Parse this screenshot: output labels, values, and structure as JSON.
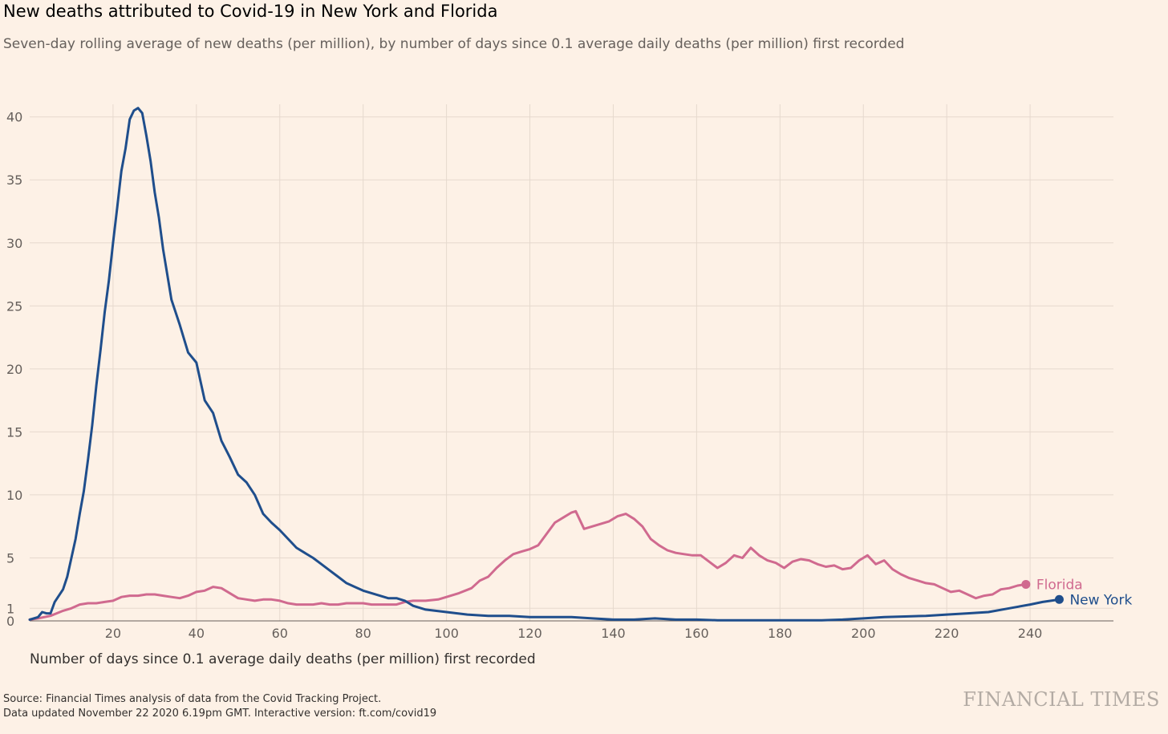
{
  "title": "New deaths attributed to Covid-19 in New York and Florida",
  "subtitle": "Seven-day rolling average of new deaths (per million), by number of days since 0.1 average daily deaths (per million) first recorded",
  "source_line1": "Source: Financial Times analysis of data from the Covid Tracking Project.",
  "source_line2": "Data updated November 22 2020 6.19pm GMT. Interactive version: ft.com/covid19",
  "brand": "FINANCIAL TIMES",
  "colors": {
    "background": "#fdf1e6",
    "grid": "#e6d9ce",
    "new_york": "#1f4e8c",
    "florida": "#d06a8f"
  },
  "chart_data": {
    "type": "line",
    "xlabel": "Number of days since 0.1 average daily deaths (per million) first recorded",
    "ylabel": "",
    "xlim": [
      0,
      260
    ],
    "ylim": [
      0,
      41
    ],
    "x_ticks": [
      20,
      40,
      60,
      80,
      100,
      120,
      140,
      160,
      180,
      200,
      220,
      240
    ],
    "y_ticks": [
      0,
      1,
      5,
      10,
      15,
      20,
      25,
      30,
      35,
      40
    ],
    "grid": true,
    "series": [
      {
        "name": "New York",
        "color": "#1f4e8c",
        "x": [
          0,
          2,
          3,
          4,
          5,
          6,
          8,
          9,
          10,
          11,
          12,
          13,
          14,
          15,
          16,
          17,
          18,
          19,
          20,
          21,
          22,
          23,
          24,
          25,
          26,
          27,
          28,
          29,
          30,
          31,
          32,
          33,
          34,
          35,
          36,
          38,
          40,
          42,
          44,
          46,
          48,
          50,
          52,
          54,
          56,
          58,
          60,
          62,
          64,
          66,
          68,
          70,
          72,
          74,
          76,
          78,
          80,
          82,
          84,
          86,
          88,
          90,
          92,
          95,
          100,
          105,
          110,
          115,
          120,
          125,
          130,
          135,
          140,
          145,
          150,
          155,
          160,
          165,
          170,
          175,
          180,
          185,
          190,
          195,
          200,
          205,
          210,
          215,
          220,
          225,
          230,
          235,
          240,
          243,
          245,
          247
        ],
        "y": [
          0.1,
          0.3,
          0.7,
          0.6,
          0.6,
          1.5,
          2.5,
          3.5,
          5,
          6.5,
          8.5,
          10.3,
          12.8,
          15.5,
          18.7,
          21.5,
          24.5,
          27,
          30,
          32.8,
          35.7,
          37.5,
          39.8,
          40.5,
          40.7,
          40.3,
          38.5,
          36.5,
          34,
          32,
          29.5,
          27.5,
          25.5,
          24.5,
          23.5,
          21.3,
          20.5,
          17.5,
          16.5,
          14.3,
          13,
          11.6,
          11,
          10,
          8.5,
          7.8,
          7.2,
          6.5,
          5.8,
          5.4,
          5,
          4.5,
          4,
          3.5,
          3,
          2.7,
          2.4,
          2.2,
          2,
          1.8,
          1.8,
          1.6,
          1.2,
          0.9,
          0.7,
          0.5,
          0.4,
          0.4,
          0.3,
          0.3,
          0.3,
          0.2,
          0.1,
          0.1,
          0.2,
          0.1,
          0.1,
          0.05,
          0.05,
          0.05,
          0.05,
          0.05,
          0.05,
          0.1,
          0.2,
          0.3,
          0.35,
          0.4,
          0.5,
          0.6,
          0.7,
          1,
          1.3,
          1.5,
          1.6,
          1.7
        ]
      },
      {
        "name": "Florida",
        "color": "#d06a8f",
        "x": [
          0,
          2,
          5,
          8,
          10,
          12,
          14,
          16,
          18,
          20,
          22,
          24,
          26,
          28,
          30,
          32,
          34,
          36,
          38,
          40,
          42,
          44,
          46,
          48,
          50,
          52,
          54,
          56,
          58,
          60,
          62,
          64,
          66,
          68,
          70,
          72,
          74,
          76,
          78,
          80,
          82,
          84,
          86,
          88,
          90,
          92,
          95,
          98,
          100,
          103,
          106,
          108,
          110,
          112,
          114,
          116,
          118,
          120,
          122,
          124,
          126,
          128,
          130,
          131,
          133,
          135,
          137,
          139,
          141,
          143,
          145,
          147,
          149,
          151,
          153,
          155,
          157,
          159,
          161,
          163,
          165,
          167,
          169,
          171,
          173,
          175,
          177,
          179,
          181,
          183,
          185,
          187,
          189,
          191,
          193,
          195,
          197,
          199,
          201,
          203,
          205,
          207,
          209,
          211,
          213,
          215,
          217,
          219,
          221,
          223,
          225,
          227,
          229,
          231,
          233,
          235,
          237,
          239
        ],
        "y": [
          0.1,
          0.2,
          0.4,
          0.8,
          1,
          1.3,
          1.4,
          1.4,
          1.5,
          1.6,
          1.9,
          2,
          2,
          2.1,
          2.1,
          2,
          1.9,
          1.8,
          2,
          2.3,
          2.4,
          2.7,
          2.6,
          2.2,
          1.8,
          1.7,
          1.6,
          1.7,
          1.7,
          1.6,
          1.4,
          1.3,
          1.3,
          1.3,
          1.4,
          1.3,
          1.3,
          1.4,
          1.4,
          1.4,
          1.3,
          1.3,
          1.3,
          1.3,
          1.5,
          1.6,
          1.6,
          1.7,
          1.9,
          2.2,
          2.6,
          3.2,
          3.5,
          4.2,
          4.8,
          5.3,
          5.5,
          5.7,
          6,
          6.9,
          7.8,
          8.2,
          8.6,
          8.7,
          7.3,
          7.5,
          7.7,
          7.9,
          8.3,
          8.5,
          8.1,
          7.5,
          6.5,
          6,
          5.6,
          5.4,
          5.3,
          5.2,
          5.2,
          4.7,
          4.2,
          4.6,
          5.2,
          5,
          5.8,
          5.2,
          4.8,
          4.6,
          4.2,
          4.7,
          4.9,
          4.8,
          4.5,
          4.3,
          4.4,
          4.1,
          4.2,
          4.8,
          5.2,
          4.5,
          4.8,
          4.1,
          3.7,
          3.4,
          3.2,
          3,
          2.9,
          2.6,
          2.3,
          2.4,
          2.1,
          1.8,
          2,
          2.1,
          2.5,
          2.6,
          2.8,
          2.9
        ]
      }
    ]
  }
}
